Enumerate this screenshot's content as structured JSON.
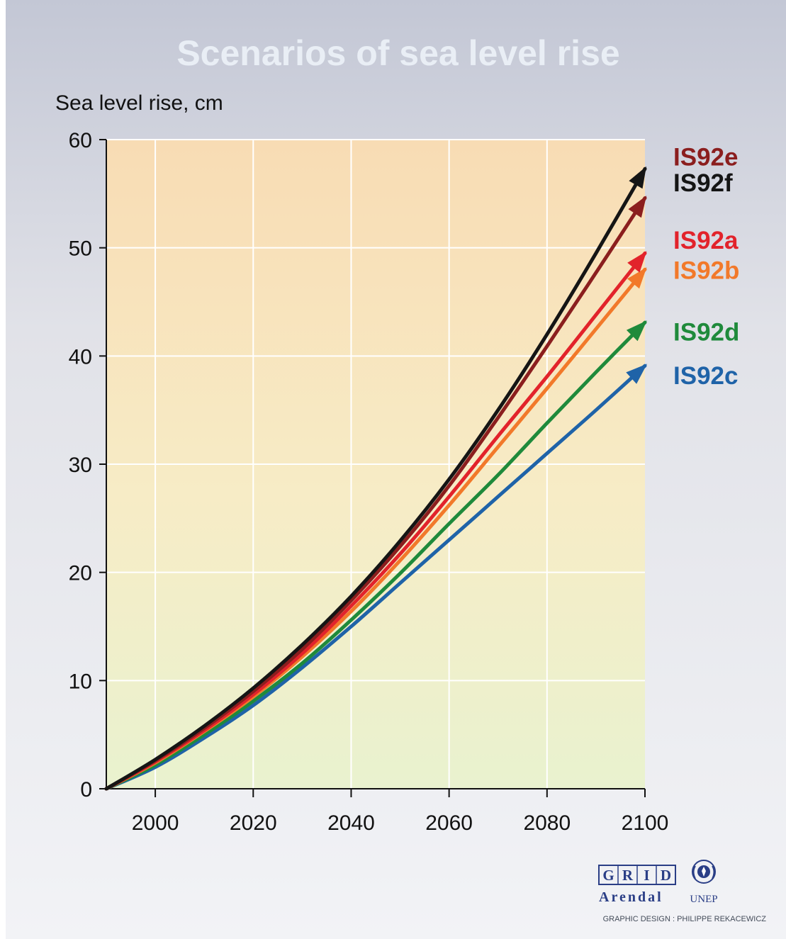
{
  "chart_data": {
    "type": "line",
    "title": "Scenarios of sea level rise",
    "ylabel": "Sea level rise, cm",
    "xlabel": "",
    "xlim": [
      1990,
      2100
    ],
    "ylim": [
      0,
      60
    ],
    "x_ticks": [
      2000,
      2020,
      2040,
      2060,
      2080,
      2100
    ],
    "y_ticks": [
      0,
      10,
      20,
      30,
      40,
      50,
      60
    ],
    "grid": true,
    "legend": "right",
    "x": [
      1990,
      2000,
      2010,
      2020,
      2030,
      2040,
      2050,
      2060,
      2070,
      2080,
      2090,
      2100
    ],
    "series": [
      {
        "name": "IS92e",
        "color": "#8b1e1e",
        "label_y": 58.4,
        "values": [
          0,
          2.6,
          5.6,
          9.0,
          12.9,
          17.4,
          22.4,
          28.0,
          34.3,
          40.9,
          47.7,
          54.6
        ]
      },
      {
        "name": "IS92f",
        "color": "#151515",
        "label_y": 56.0,
        "values": [
          0,
          2.7,
          5.8,
          9.3,
          13.3,
          17.8,
          22.9,
          28.6,
          35.0,
          42.0,
          49.5,
          57.3
        ]
      },
      {
        "name": "IS92a",
        "color": "#e2232b",
        "label_y": 50.7,
        "values": [
          0,
          2.5,
          5.4,
          8.7,
          12.5,
          16.9,
          21.7,
          27.0,
          32.6,
          38.1,
          43.8,
          49.5
        ]
      },
      {
        "name": "IS92b",
        "color": "#f2792a",
        "label_y": 47.9,
        "values": [
          0,
          2.4,
          5.3,
          8.5,
          12.2,
          16.4,
          21.1,
          26.2,
          31.6,
          37.0,
          42.5,
          48.0
        ]
      },
      {
        "name": "IS92d",
        "color": "#1f8a3b",
        "label_y": 42.2,
        "values": [
          0,
          2.2,
          5.0,
          8.1,
          11.6,
          15.6,
          19.9,
          24.5,
          29.0,
          33.8,
          38.5,
          43.1
        ]
      },
      {
        "name": "IS92c",
        "color": "#1f63a8",
        "label_y": 38.2,
        "values": [
          0,
          2.0,
          4.7,
          7.7,
          11.2,
          15.0,
          19.0,
          23.0,
          27.0,
          31.0,
          35.0,
          39.1
        ]
      }
    ]
  },
  "credits": {
    "grid_letters": [
      "G",
      "R",
      "I",
      "D"
    ],
    "arendal": "Arendal",
    "unep": "UNEP",
    "design": "GRAPHIC DESIGN : PHILIPPE REKACEWICZ"
  },
  "colors": {
    "title": "#e9eef5",
    "logo": "#2a3e86"
  }
}
